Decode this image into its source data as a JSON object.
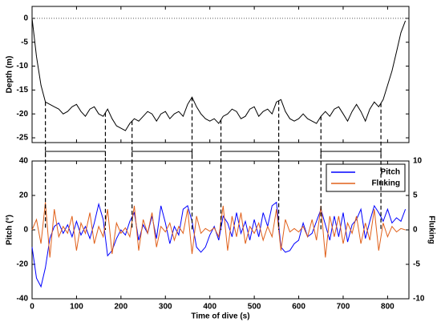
{
  "chart_data": [
    {
      "type": "line",
      "ylabel": "Depth (m)",
      "xlim": [
        0,
        848
      ],
      "xticks": [
        0,
        100,
        200,
        300,
        400,
        500,
        600,
        700,
        800
      ],
      "ylim": [
        -26,
        2.5
      ],
      "yticks": [
        0,
        -5,
        -10,
        -15,
        -20,
        -25
      ],
      "hline": 0,
      "segments": [
        [
          30,
          165
        ],
        [
          225,
          360
        ],
        [
          425,
          555
        ],
        [
          650,
          785
        ]
      ],
      "x": [
        0,
        10,
        20,
        30,
        40,
        50,
        60,
        70,
        80,
        90,
        100,
        110,
        120,
        130,
        140,
        150,
        160,
        170,
        180,
        190,
        200,
        210,
        220,
        230,
        240,
        250,
        260,
        270,
        280,
        290,
        300,
        310,
        320,
        330,
        340,
        350,
        360,
        370,
        380,
        390,
        400,
        410,
        420,
        430,
        440,
        450,
        460,
        470,
        480,
        490,
        500,
        510,
        520,
        530,
        540,
        550,
        560,
        570,
        580,
        590,
        600,
        610,
        620,
        630,
        640,
        650,
        660,
        670,
        680,
        690,
        700,
        710,
        720,
        730,
        740,
        750,
        760,
        770,
        780,
        790,
        800,
        810,
        820,
        830,
        840
      ],
      "series": [
        {
          "name": "Depth",
          "color": "#000000",
          "values": [
            0,
            -8,
            -14,
            -17.5,
            -18,
            -18.5,
            -19,
            -20,
            -19.5,
            -18.5,
            -18,
            -19.5,
            -20.5,
            -19,
            -18.5,
            -20,
            -20.5,
            -19,
            -21,
            -22.5,
            -23,
            -23.5,
            -22,
            -21,
            -21.5,
            -20.5,
            -19.5,
            -20,
            -21.5,
            -20,
            -19.5,
            -21,
            -20,
            -19.5,
            -20.5,
            -18,
            -16.5,
            -18.5,
            -20,
            -21,
            -21.5,
            -21,
            -22,
            -20.5,
            -20,
            -19,
            -19.5,
            -21,
            -20.5,
            -19,
            -18.5,
            -20.5,
            -19.5,
            -19,
            -20,
            -17.5,
            -17,
            -19.5,
            -21,
            -21.5,
            -21,
            -20,
            -21,
            -21.5,
            -22,
            -20.5,
            -19.5,
            -20.5,
            -19,
            -18.5,
            -20,
            -21.5,
            -19.5,
            -18,
            -19.5,
            -21.5,
            -19,
            -17.5,
            -18.5,
            -17,
            -14,
            -11,
            -7,
            -3,
            -0.5
          ]
        }
      ]
    },
    {
      "type": "line",
      "xlabel": "Time of dive (s)",
      "ylabel": "Pitch (°)",
      "y2label": "Fluking",
      "xlim": [
        0,
        848
      ],
      "xticks": [
        0,
        100,
        200,
        300,
        400,
        500,
        600,
        700,
        800
      ],
      "ylim": [
        -40,
        40
      ],
      "yticks": [
        -40,
        -20,
        0,
        20,
        40
      ],
      "y2lim": [
        -10,
        10
      ],
      "y2ticks": [
        -10,
        -5,
        0,
        5,
        10
      ],
      "legend": "upper right",
      "x": [
        0,
        10,
        20,
        30,
        40,
        50,
        60,
        70,
        80,
        90,
        100,
        110,
        120,
        130,
        140,
        150,
        160,
        170,
        180,
        190,
        200,
        210,
        220,
        230,
        240,
        250,
        260,
        270,
        280,
        290,
        300,
        310,
        320,
        330,
        340,
        350,
        360,
        370,
        380,
        390,
        400,
        410,
        420,
        430,
        440,
        450,
        460,
        470,
        480,
        490,
        500,
        510,
        520,
        530,
        540,
        550,
        560,
        570,
        580,
        590,
        600,
        610,
        620,
        630,
        640,
        650,
        660,
        670,
        680,
        690,
        700,
        710,
        720,
        730,
        740,
        750,
        760,
        770,
        780,
        790,
        800,
        810,
        820,
        830,
        840
      ],
      "series": [
        {
          "name": "Pitch",
          "color": "#0000ff",
          "values": [
            -10,
            -28,
            -33,
            -22,
            -5,
            2,
            4,
            -2,
            3,
            -4,
            5,
            -3,
            2,
            -5,
            4,
            15,
            6,
            -15,
            -12,
            -5,
            0,
            -3,
            5,
            10,
            -6,
            3,
            -2,
            8,
            -5,
            14,
            4,
            -8,
            2,
            -3,
            12,
            14,
            5,
            -10,
            -13,
            -10,
            -3,
            2,
            -6,
            8,
            4,
            -4,
            10,
            -2,
            5,
            -6,
            6,
            -4,
            10,
            2,
            14,
            16,
            -10,
            -13,
            -12,
            -8,
            -6,
            4,
            -4,
            -2,
            5,
            12,
            3,
            -6,
            8,
            -4,
            10,
            -7,
            3,
            6,
            12,
            -5,
            5,
            14,
            10,
            5,
            12,
            4,
            7,
            5,
            12
          ]
        },
        {
          "name": "Fluking",
          "color": "#e0601a",
          "axis": "y2",
          "values": [
            0,
            1.5,
            -2,
            4,
            -4,
            3,
            -1,
            0.5,
            -0.5,
            2,
            -3,
            1,
            -0.5,
            2.5,
            -2,
            0.5,
            -1,
            3,
            -3.5,
            1,
            -0.5,
            0.3,
            -1,
            3.5,
            -3,
            1.5,
            -0.5,
            2.5,
            -2.5,
            0.5,
            -0.3,
            1,
            -1.5,
            0.5,
            -0.5,
            3,
            -3.5,
            2,
            -0.5,
            0.2,
            -0.2,
            0.3,
            -1,
            3.5,
            -3,
            2,
            -1,
            2.5,
            -2,
            0.5,
            -0.5,
            1,
            -1.5,
            0.5,
            -1,
            3,
            -3,
            1.5,
            -0.3,
            0.2,
            -0.3,
            0.5,
            -1,
            1.5,
            -1.5,
            3.5,
            -4,
            2,
            -1,
            2,
            -2,
            1,
            -0.5,
            2,
            -2,
            1,
            -1.5,
            3,
            -3,
            1,
            -1,
            0.5,
            -0.3,
            0.2,
            0
          ]
        }
      ]
    }
  ]
}
